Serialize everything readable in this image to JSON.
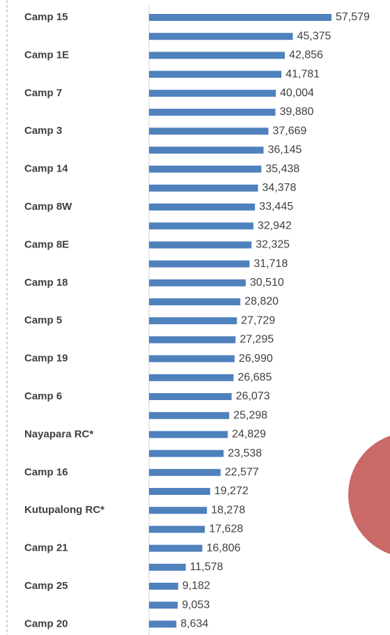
{
  "chart_data": {
    "type": "bar",
    "orientation": "horizontal",
    "color": "#4f81bd",
    "categories": [
      "Camp 15",
      null,
      "Camp 1E",
      null,
      "Camp 7",
      null,
      "Camp 3",
      null,
      "Camp 14",
      null,
      "Camp 8W",
      null,
      "Camp 8E",
      null,
      "Camp 18",
      null,
      "Camp 5",
      null,
      "Camp 19",
      null,
      "Camp 6",
      null,
      "Nayapara RC*",
      null,
      "Camp 16",
      null,
      "Kutupalong RC*",
      null,
      "Camp 21",
      null,
      "Camp 25",
      null,
      "Camp 20"
    ],
    "values": [
      57579,
      45375,
      42856,
      41781,
      40004,
      39880,
      37669,
      36145,
      35438,
      34378,
      33445,
      32942,
      32325,
      31718,
      30510,
      28820,
      27729,
      27295,
      26990,
      26685,
      26073,
      25298,
      24829,
      23538,
      22577,
      19272,
      18278,
      17628,
      16806,
      11578,
      9182,
      9053,
      8634
    ],
    "value_labels": [
      "57,579",
      "45,375",
      "42,856",
      "41,781",
      "40,004",
      "39,880",
      "37,669",
      "36,145",
      "35,438",
      "34,378",
      "33,445",
      "32,942",
      "32,325",
      "31,718",
      "30,510",
      "28,820",
      "27,729",
      "27,295",
      "26,990",
      "26,685",
      "26,073",
      "25,298",
      "24,829",
      "23,538",
      "22,577",
      "19,272",
      "18,278",
      "17,628",
      "16,806",
      "11,578",
      "9,182",
      "9,053",
      "8,634"
    ],
    "xlim": [
      0,
      60000
    ]
  }
}
